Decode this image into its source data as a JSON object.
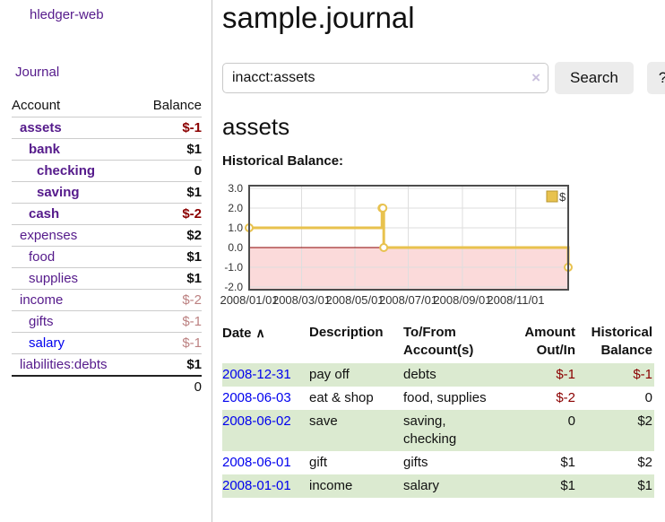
{
  "colors": {
    "link_visited_purple": "#551a8b",
    "link_blue": "#0000ee",
    "negative_strong": "#8b0000",
    "negative_weak": "#bc8181",
    "row_green": "#dbead0",
    "button_bg": "#ececec"
  },
  "sidebar": {
    "brand": "hledger-web",
    "journal_link": "Journal",
    "accounts": {
      "header": {
        "account": "Account",
        "balance": "Balance"
      },
      "rows": [
        {
          "name": "assets",
          "balance": "$-1"
        },
        {
          "name": "bank",
          "balance": "$1"
        },
        {
          "name": "checking",
          "balance": "0"
        },
        {
          "name": "saving",
          "balance": "$1"
        },
        {
          "name": "cash",
          "balance": "$-2"
        },
        {
          "name": "expenses",
          "balance": "$2"
        },
        {
          "name": "food",
          "balance": "$1"
        },
        {
          "name": "supplies",
          "balance": "$1"
        },
        {
          "name": "income",
          "balance": "$-2"
        },
        {
          "name": "gifts",
          "balance": "$-1"
        },
        {
          "name": "salary",
          "balance": "$-1"
        },
        {
          "name": "liabilities:debts",
          "balance": "$1"
        }
      ],
      "total": "0"
    }
  },
  "header": {
    "title": "sample.journal"
  },
  "search": {
    "value": "inacct:assets",
    "button_label": "Search",
    "help_label": "?",
    "clear_icon": "×"
  },
  "account_page": {
    "heading": "assets",
    "chart_label": "Historical Balance:"
  },
  "register": {
    "headers": {
      "date": "Date",
      "description": "Description",
      "accounts": "To/From\nAccount(s)",
      "amount": "Amount\nOut/In",
      "balance": "Historical\nBalance"
    },
    "sort_icon": "∧",
    "rows": [
      {
        "date": "2008-12-31",
        "description": "pay off",
        "accounts": "debts",
        "amount": "$-1",
        "balance": "$-1"
      },
      {
        "date": "2008-06-03",
        "description": "eat & shop",
        "accounts": "food, supplies",
        "amount": "$-2",
        "balance": "0"
      },
      {
        "date": "2008-06-02",
        "description": "save",
        "accounts": "saving,\nchecking",
        "amount": "0",
        "balance": "$2"
      },
      {
        "date": "2008-06-01",
        "description": "gift",
        "accounts": "gifts",
        "amount": "$1",
        "balance": "$2"
      },
      {
        "date": "2008-01-01",
        "description": "income",
        "accounts": "salary",
        "amount": "$1",
        "balance": "$1"
      }
    ]
  },
  "chart_data": {
    "type": "line",
    "title": "Historical Balance",
    "legend_position": "top-right",
    "grid": true,
    "x_range": [
      "2008-01-01",
      "2008-12-31"
    ],
    "y_range": [
      -2.136,
      3.136
    ],
    "y_ticks": [
      3.0,
      2.0,
      1.0,
      0.0,
      -1.0,
      -2.0
    ],
    "x_ticks": [
      {
        "date": "2008-01-01",
        "label": "2008/01/01"
      },
      {
        "date": "2008-03-01",
        "label": "2008/03/01"
      },
      {
        "date": "2008-05-01",
        "label": "2008/05/01"
      },
      {
        "date": "2008-07-01",
        "label": "2008/07/01"
      },
      {
        "date": "2008-09-01",
        "label": "2008/09/01"
      },
      {
        "date": "2008-11-01",
        "label": "2008/11/01"
      }
    ],
    "series": [
      {
        "name": "$",
        "step": true,
        "points": [
          {
            "date": "2008-01-01",
            "value": 1
          },
          {
            "date": "2008-06-01",
            "value": 2
          },
          {
            "date": "2008-06-02",
            "value": 2
          },
          {
            "date": "2008-06-03",
            "value": 0
          },
          {
            "date": "2008-12-31",
            "value": -1
          }
        ]
      }
    ],
    "colors": {
      "line": "#e8c24e",
      "legend_border": "#b8962e",
      "marker_fill": "#ffffff",
      "negative_region": "#fbdada",
      "zero_line": "#8b0000",
      "grid": "#dedede",
      "border": "#4d4d4d",
      "tick_text": "#333333"
    }
  }
}
